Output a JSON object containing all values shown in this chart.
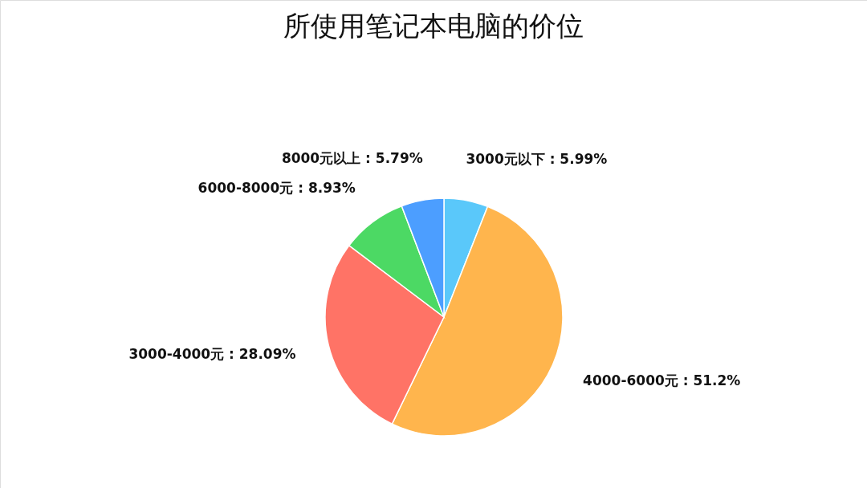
{
  "chart_data": {
    "type": "pie",
    "title": "所使用笔记本电脑的价位",
    "categories": [
      "3000元以下",
      "4000-6000元",
      "3000-4000元",
      "6000-8000元",
      "8000元以上"
    ],
    "values": [
      5.99,
      51.2,
      28.09,
      8.93,
      5.79
    ],
    "value_labels": [
      "5.99%",
      "51.2%",
      "28.09%",
      "8.93%",
      "5.79%"
    ],
    "colors": [
      "#5ac8fa",
      "#ffb54d",
      "#ff7366",
      "#4cd964",
      "#4c9eff"
    ],
    "legend": false
  }
}
